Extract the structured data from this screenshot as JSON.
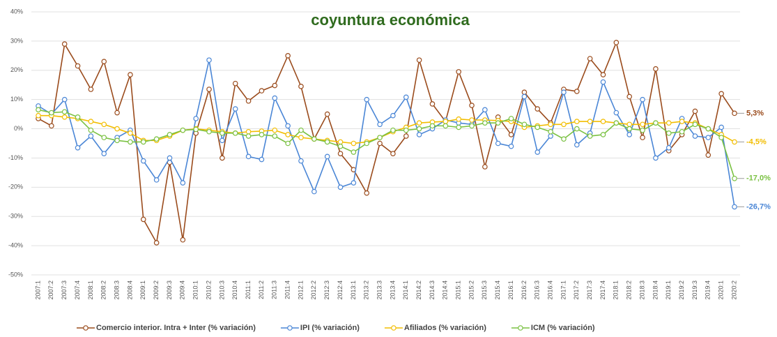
{
  "chart_data": {
    "type": "line",
    "title": "coyuntura económica",
    "categories": [
      "2007:1",
      "2007:2",
      "2007:3",
      "2007:4",
      "2008:1",
      "2008:2",
      "2008:3",
      "2008:4",
      "2009:1",
      "2009:2",
      "2009:3",
      "2009:4",
      "2010:1",
      "2010:2",
      "2010:3",
      "2010:4",
      "2011:1",
      "2011:2",
      "2011:3",
      "2011:4",
      "2012:1",
      "2012:2",
      "2012:3",
      "2012:4",
      "2013:1",
      "2013:2",
      "2013:3",
      "2013:4",
      "2014:1",
      "2014:2",
      "2014:3",
      "2014:4",
      "2015:1",
      "2015:2",
      "2015:3",
      "2015:4",
      "2016:1",
      "2016:2",
      "2016:3",
      "2016:4",
      "2017:1",
      "2017:2",
      "2017:3",
      "2017:4",
      "2018:1",
      "2018:2",
      "2018:3",
      "2018:4",
      "2019:1",
      "2019:2",
      "2019:3",
      "2019:4",
      "2020:1",
      "2020:2"
    ],
    "ylim": [
      -50,
      40
    ],
    "yticks": [
      {
        "value": -50,
        "label": "-50%"
      },
      {
        "value": -40,
        "label": "-40%"
      },
      {
        "value": -30,
        "label": "-30%"
      },
      {
        "value": -20,
        "label": "-20%"
      },
      {
        "value": -10,
        "label": "-10%"
      },
      {
        "value": 0,
        "label": "0%"
      },
      {
        "value": 10,
        "label": "10%"
      },
      {
        "value": 20,
        "label": "20%"
      },
      {
        "value": 30,
        "label": "30%"
      },
      {
        "value": 40,
        "label": "40%"
      }
    ],
    "grid": true,
    "legend": "bottom",
    "series": [
      {
        "name": "Comercio interior. Intra + Inter (% variación)",
        "color": "#9a4b1c",
        "values": [
          3.5,
          1,
          29,
          21.5,
          13.5,
          23,
          5.5,
          18.5,
          -31,
          -39,
          -11.5,
          -38,
          -1.5,
          13.5,
          -10,
          15.5,
          9.5,
          13,
          14.8,
          25,
          14.5,
          -3.5,
          5,
          -8.5,
          -14,
          -22,
          -5,
          -8.5,
          -2.5,
          23.5,
          8.5,
          2.5,
          19.5,
          8,
          -13,
          4,
          -2,
          12.5,
          6.8,
          2,
          13.5,
          12.8,
          24,
          18.5,
          29.5,
          11,
          -3,
          20.5,
          -7.5,
          -2,
          6,
          -9,
          12,
          5.3
        ],
        "value_labels": [
          null,
          null,
          null,
          null,
          null,
          null,
          null,
          null,
          null,
          null,
          null,
          null,
          null,
          null,
          null,
          null,
          null,
          null,
          null,
          null,
          null,
          null,
          null,
          null,
          null,
          null,
          null,
          null,
          null,
          null,
          null,
          null,
          null,
          null,
          null,
          null,
          null,
          null,
          null,
          null,
          null,
          null,
          null,
          null,
          null,
          null,
          null,
          null,
          null,
          null,
          null,
          null,
          null,
          "5,3%"
        ]
      },
      {
        "name": "IPI (% variación)",
        "color": "#4a86d6",
        "values": [
          7.8,
          5,
          10,
          -6.5,
          -2.5,
          -8.5,
          -3,
          -0.5,
          -11,
          -17.5,
          -10,
          -18.5,
          3.5,
          23.5,
          -4,
          6.8,
          -9.5,
          -10.5,
          10.5,
          1,
          -11,
          -21.5,
          -9.5,
          -20,
          -18.5,
          10,
          1.5,
          4.5,
          10.8,
          -2,
          0,
          3,
          2,
          1.5,
          6.5,
          -5,
          -6,
          11,
          -8,
          -2.5,
          12.5,
          -5.5,
          -1.5,
          16,
          5.5,
          -2,
          10,
          -10,
          -6.5,
          3.5,
          -2.5,
          -3,
          0.5,
          -26.7
        ],
        "value_labels": [
          null,
          null,
          null,
          null,
          null,
          null,
          null,
          null,
          null,
          null,
          null,
          null,
          null,
          null,
          null,
          null,
          null,
          null,
          null,
          null,
          null,
          null,
          null,
          null,
          null,
          null,
          null,
          null,
          null,
          null,
          null,
          null,
          null,
          null,
          null,
          null,
          null,
          null,
          null,
          null,
          null,
          null,
          null,
          null,
          null,
          null,
          null,
          null,
          null,
          null,
          null,
          null,
          null,
          "-26,7%"
        ]
      },
      {
        "name": "Afiliados (% variación)",
        "color": "#f2bd00",
        "values": [
          4.5,
          4.5,
          4,
          3.5,
          2.5,
          1.5,
          0,
          -1.5,
          -4,
          -4,
          -2.5,
          -0.5,
          0,
          -0.5,
          -1,
          -1.5,
          -1,
          -0.8,
          -0.5,
          -2,
          -3,
          -3.5,
          -4,
          -4.5,
          -5,
          -4.5,
          -3,
          -1,
          0.5,
          2,
          2.3,
          2.5,
          3.3,
          3,
          3,
          2.8,
          2.5,
          0.5,
          1,
          1.5,
          1.5,
          2.5,
          2.5,
          2.5,
          2,
          1.5,
          1.5,
          2,
          2,
          2.5,
          2,
          0,
          -2,
          -4.5
        ],
        "value_labels": [
          null,
          null,
          null,
          null,
          null,
          null,
          null,
          null,
          null,
          null,
          null,
          null,
          null,
          null,
          null,
          null,
          null,
          null,
          null,
          null,
          null,
          null,
          null,
          null,
          null,
          null,
          null,
          null,
          null,
          null,
          null,
          null,
          null,
          null,
          null,
          null,
          null,
          null,
          null,
          null,
          null,
          null,
          null,
          null,
          null,
          null,
          null,
          null,
          null,
          null,
          null,
          null,
          null,
          "-4,5%"
        ]
      },
      {
        "name": "ICM (% variación)",
        "color": "#7ac142",
        "values": [
          6.5,
          5.5,
          5.8,
          4,
          -0.5,
          -3,
          -4,
          -4.5,
          -4.5,
          -3.5,
          -2,
          -0.5,
          -0.2,
          -1,
          -1.5,
          -1.5,
          -2.5,
          -2,
          -2.5,
          -5,
          -0.5,
          -3.5,
          -4.5,
          -6,
          -8,
          -5,
          -3,
          -0.5,
          -0.5,
          0,
          1,
          1,
          0.5,
          1,
          2,
          2,
          3.5,
          1.5,
          0.5,
          -1,
          -3.5,
          0,
          -2.5,
          -2,
          2,
          0,
          -0.5,
          2,
          -1.5,
          -1,
          1.5,
          0,
          -3,
          -17.0
        ],
        "value_labels": [
          null,
          null,
          null,
          null,
          null,
          null,
          null,
          null,
          null,
          null,
          null,
          null,
          null,
          null,
          null,
          null,
          null,
          null,
          null,
          null,
          null,
          null,
          null,
          null,
          null,
          null,
          null,
          null,
          null,
          null,
          null,
          null,
          null,
          null,
          null,
          null,
          null,
          null,
          null,
          null,
          null,
          null,
          null,
          null,
          null,
          null,
          null,
          null,
          null,
          null,
          null,
          null,
          null,
          "-17,0%"
        ]
      }
    ]
  }
}
